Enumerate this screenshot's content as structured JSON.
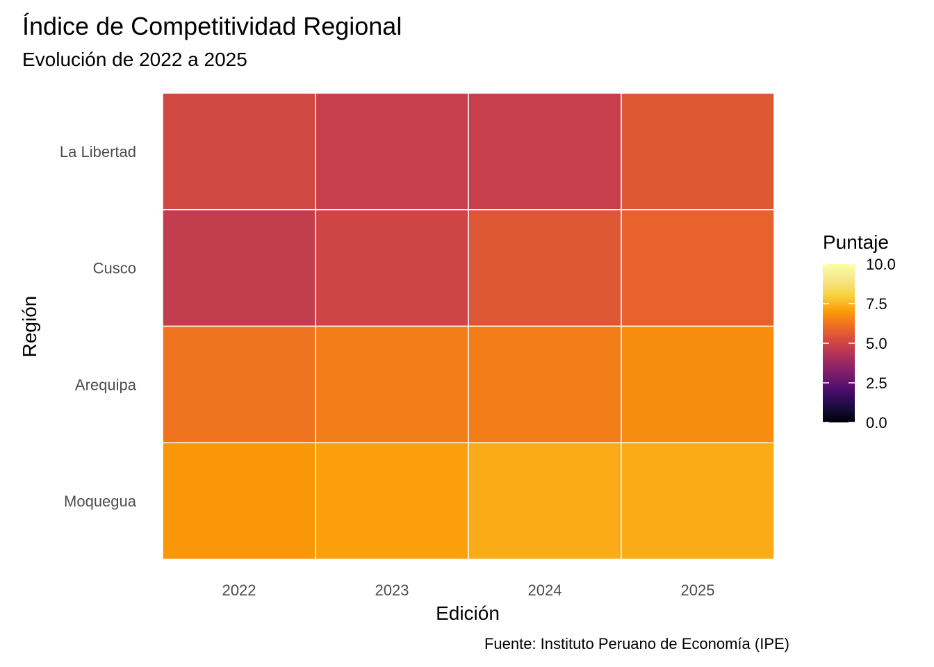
{
  "chart_data": {
    "type": "heatmap",
    "title": "Índice de Competitividad Regional",
    "subtitle": "Evolución de 2022 a 2025",
    "xlabel": "Edición",
    "ylabel": "Región",
    "caption": "Fuente: Instituto Peruano de Economía (IPE)",
    "x_categories": [
      "2022",
      "2023",
      "2024",
      "2025"
    ],
    "y_categories": [
      "La Libertad",
      "Cusco",
      "Arequipa",
      "Moquegua"
    ],
    "values": [
      [
        5.1,
        4.8,
        4.8,
        5.5
      ],
      [
        4.7,
        5.0,
        5.5,
        5.8
      ],
      [
        6.2,
        6.4,
        6.4,
        6.7
      ],
      [
        6.9,
        7.1,
        7.3,
        7.3
      ]
    ],
    "legend": {
      "title": "Puntaje",
      "range": [
        0,
        10
      ],
      "breaks": [
        "0.0",
        "2.5",
        "5.0",
        "7.5",
        "10.0"
      ],
      "palette": "inferno",
      "placement": "right"
    },
    "grid": false
  }
}
